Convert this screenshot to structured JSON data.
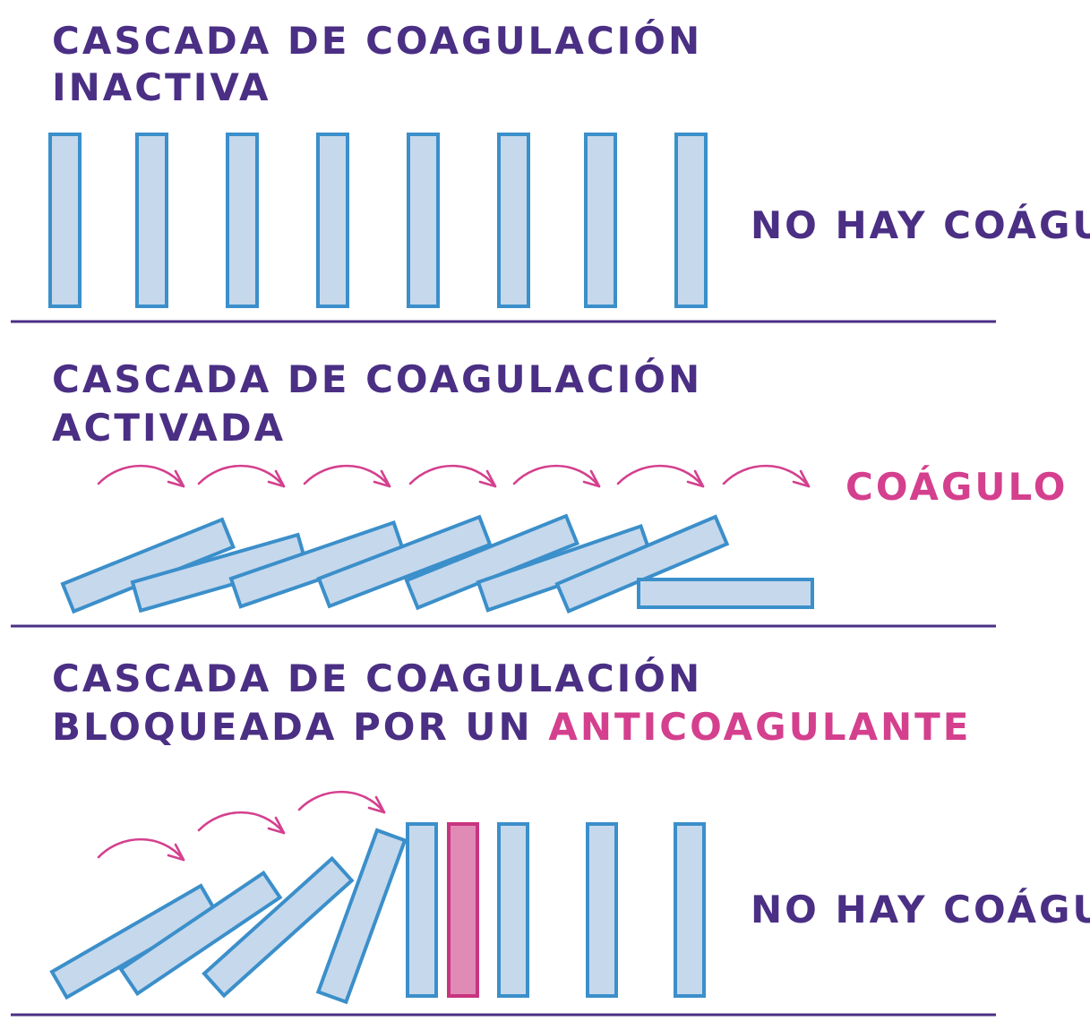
{
  "colors": {
    "title": "#4a2f84",
    "accent_pink": "#d4408e",
    "domino_fill": "#c6d8ec",
    "domino_stroke": "#3b8fca",
    "anticoagulant_fill": "#e08ab6",
    "anticoagulant_stroke": "#c8357f",
    "ground": "#4a2f84"
  },
  "panels": [
    {
      "title_line1": "CASCADA DE COAGULACIÓN",
      "title_line2": "INACTIVA",
      "result": "NO HAY COÁGULO",
      "state": "inactive"
    },
    {
      "title_line1": "CASCADA DE COAGULACIÓN",
      "title_line2": "ACTIVADA",
      "result": "COÁGULO",
      "state": "activated"
    },
    {
      "title_line1": "CASCADA DE COAGULACIÓN",
      "title_line2": "BLOQUEADA POR UN ",
      "title_line2_highlight": "ANTICOAGULANTE",
      "result": "NO HAY COÁGULO",
      "state": "blocked"
    }
  ]
}
